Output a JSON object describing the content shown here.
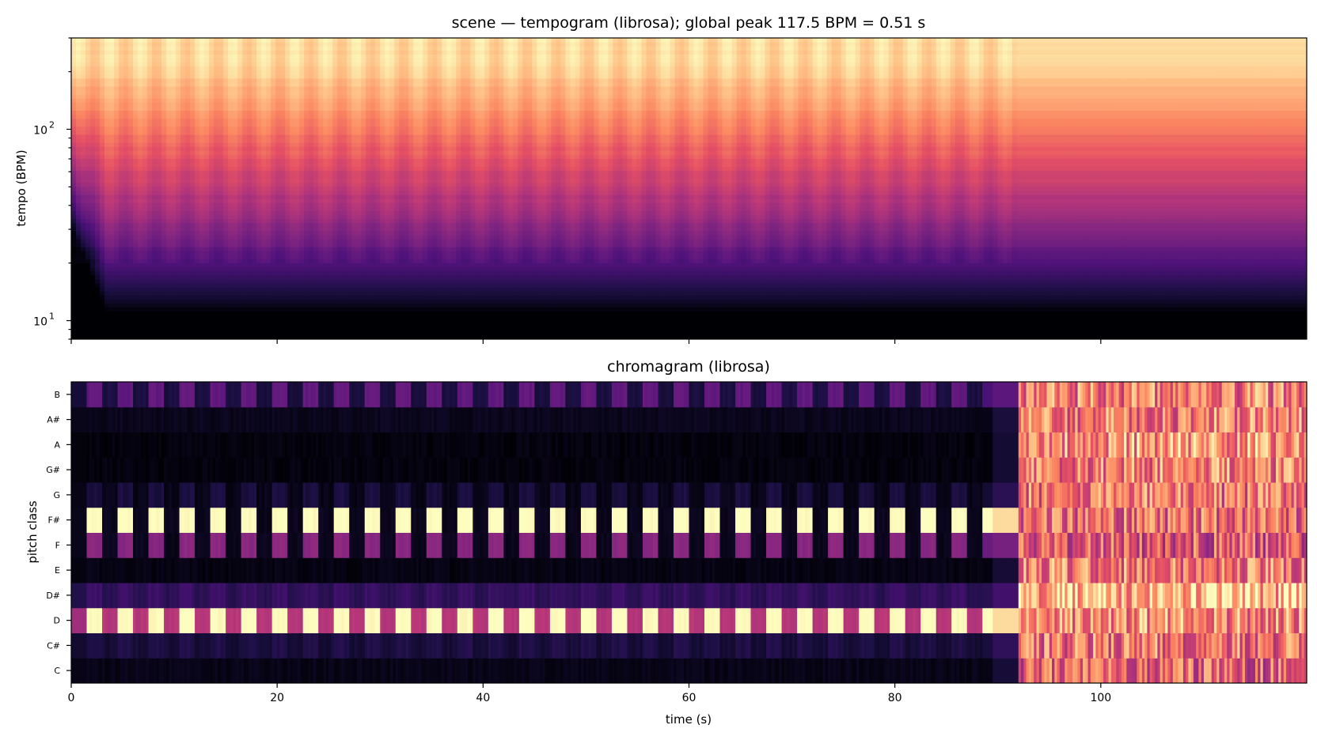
{
  "chart_data": [
    {
      "type": "heatmap",
      "title": "scene — tempogram (librosa); global peak 117.5 BPM = 0.51 s",
      "ylabel": "tempo (BPM)",
      "xlabel": "",
      "x_range": [
        0,
        120
      ],
      "y_scale": "log",
      "y_range": [
        8,
        300
      ],
      "y_ticks": [
        {
          "value": 10,
          "base": "10",
          "exp": "1"
        },
        {
          "value": 100,
          "base": "10",
          "exp": "2"
        }
      ],
      "x_ticks": [
        0,
        20,
        40,
        60,
        80,
        100
      ],
      "colormap": "magma",
      "global_peak_bpm": 117.5,
      "global_peak_period_s": 0.51,
      "description_levels": "low energy below ~15 BPM (dark), rising to bright above ~100 BPM; periodic vertical bands up to ~92 s, smoother afterwards"
    },
    {
      "type": "heatmap",
      "title": "chromagram (librosa)",
      "xlabel": "time (s)",
      "ylabel": "pitch class",
      "x_range": [
        0,
        120
      ],
      "x_ticks": [
        0,
        20,
        40,
        60,
        80,
        100
      ],
      "pitch_classes": [
        "C",
        "C#",
        "D",
        "D#",
        "E",
        "F",
        "F#",
        "G",
        "G#",
        "A",
        "A#",
        "B"
      ],
      "colormap": "magma",
      "pattern_period_s": 3.0,
      "pattern_end_s": 88.5,
      "sustain_end_s": 92,
      "noise_start_s": 92,
      "pattern_levels": {
        "D": [
          1.0,
          0.5
        ],
        "F#": [
          1.0,
          0.05
        ],
        "F": [
          0.4,
          0.05
        ],
        "B": [
          0.3,
          0.12
        ],
        "G": [
          0.12,
          0.04
        ],
        "D#": [
          0.2,
          0.16
        ],
        "C#": [
          0.14,
          0.1
        ],
        "A#": [
          0.05,
          0.05
        ],
        "C": [
          0.04,
          0.04
        ],
        "E": [
          0.03,
          0.03
        ],
        "G#": [
          0.02,
          0.02
        ],
        "A": [
          0.02,
          0.02
        ]
      },
      "noise_levels": {
        "C": 0.65,
        "C#": 0.7,
        "D": 0.75,
        "D#": 0.85,
        "E": 0.72,
        "F": 0.62,
        "F#": 0.68,
        "G": 0.7,
        "G#": 0.73,
        "A": 0.78,
        "A#": 0.72,
        "B": 0.72
      }
    }
  ]
}
